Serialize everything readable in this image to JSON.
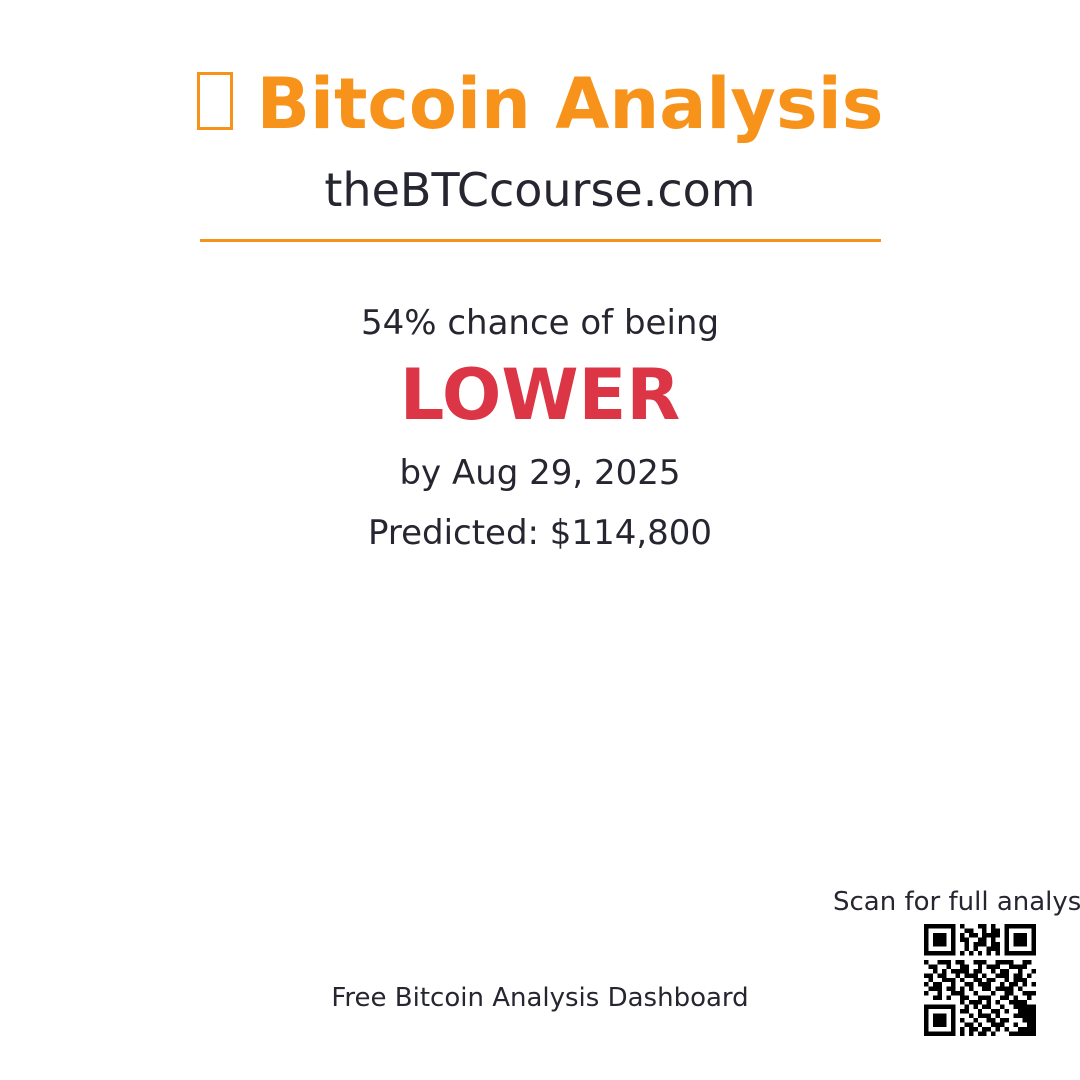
{
  "header": {
    "title": "Bitcoin Analysis",
    "icon": "missing-glyph-icon",
    "site": "theBTCcourse.com",
    "accent_color": "#f7931a"
  },
  "prediction": {
    "probability_text": "54% chance of being",
    "probability_percent": 54,
    "direction": "LOWER",
    "direction_color": "#dc3545",
    "date_text": "by Aug 29, 2025",
    "predicted_text": "Predicted: $114,800"
  },
  "footer": {
    "tagline": "Free Bitcoin Analysis Dashboard",
    "scan_text": "Scan for full analysis",
    "qr_icon": "qr-code-icon"
  }
}
